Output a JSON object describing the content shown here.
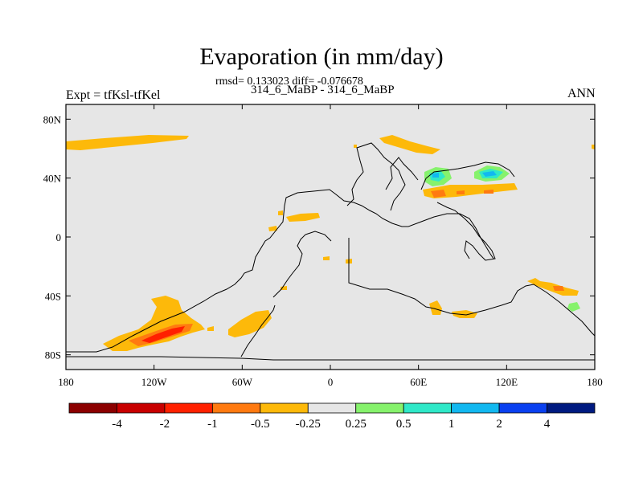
{
  "chart_data": {
    "type": "heatmap",
    "title": "Evaporation (in mm/day)",
    "stats_line": "rmsd= 0.133023 diff= -0.076678",
    "subtitle": "314_6_MaBP - 314_6_MaBP",
    "left_label": "Expt = tfKsl-tfKel",
    "right_label": "ANN",
    "xlabel": "",
    "ylabel": "",
    "xlim": [
      -180,
      180
    ],
    "ylim": [
      -90,
      90
    ],
    "x_ticks": [
      "180",
      "120W",
      "60W",
      "0",
      "60E",
      "120E",
      "180"
    ],
    "y_ticks": [
      "80N",
      "40N",
      "0",
      "40S",
      "80S"
    ],
    "colorbar": {
      "labels": [
        "-4",
        "-2",
        "-1",
        "-0.5",
        "-0.25",
        "0.25",
        "0.5",
        "1",
        "2",
        "4"
      ],
      "colors": [
        "#8b0000",
        "#c80000",
        "#ff2000",
        "#ff7a10",
        "#fdb90a",
        "#e6e6e6",
        "#86f26c",
        "#2fe8c8",
        "#12b8f0",
        "#0a40f0",
        "#001a80"
      ]
    },
    "colors": {
      "ocean": "#e6e6e6",
      "coast": "#000000",
      "neg_025": "#fdb90a",
      "neg_05": "#ff7a10",
      "neg_1": "#ff2000",
      "neg_2": "#c80000",
      "pos_025": "#86f26c",
      "pos_05": "#2fe8c8",
      "pos_1": "#12b8f0"
    }
  }
}
